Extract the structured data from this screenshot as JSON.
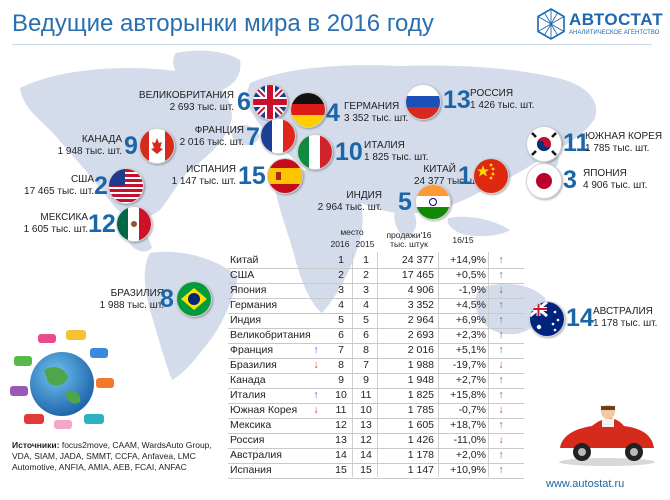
{
  "title": "Ведущие авторынки мира в 2016 году",
  "logo": {
    "name": "АВТОСТАТ",
    "subtitle": "АНАЛИТИЧЕСКОЕ АГЕНТСТВО"
  },
  "colors": {
    "accent": "#1b66a9",
    "up_arrow": "#2f6fd0",
    "down_arrow": "#d23b2b",
    "map": "#d4dceb"
  },
  "countries": [
    {
      "name": "ВЕЛИКОБРИТАНИЯ",
      "sales": "2 693 тыс. шт.",
      "rank": "6",
      "flag": "uk-flag-icon"
    },
    {
      "name": "ГЕРМАНИЯ",
      "sales": "3 352 тыс. шт.",
      "rank": "4",
      "flag": "germany-flag-icon"
    },
    {
      "name": "РОССИЯ",
      "sales": "1 426 тыс. шт.",
      "rank": "13",
      "flag": "russia-flag-icon"
    },
    {
      "name": "КАНАДА",
      "sales": "1 948 тыс. шт.",
      "rank": "9",
      "flag": "canada-flag-icon"
    },
    {
      "name": "ФРАНЦИЯ",
      "sales": "2 016 тыс. шт.",
      "rank": "7",
      "flag": "france-flag-icon"
    },
    {
      "name": "ИТАЛИЯ",
      "sales": "1 825 тыс. шт.",
      "rank": "10",
      "flag": "italy-flag-icon"
    },
    {
      "name": "ЮЖНАЯ КОРЕЯ",
      "sales": "1 785 тыс. шт.",
      "rank": "11",
      "flag": "south-korea-flag-icon"
    },
    {
      "name": "США",
      "sales": "17 465 тыс. шт.",
      "rank": "2",
      "flag": "usa-flag-icon"
    },
    {
      "name": "ИСПАНИЯ",
      "sales": "1 147 тыс. шт.",
      "rank": "15",
      "flag": "spain-flag-icon"
    },
    {
      "name": "КИТАЙ",
      "sales": "24 377 тыс. шт.",
      "rank": "1",
      "flag": "china-flag-icon"
    },
    {
      "name": "ЯПОНИЯ",
      "sales": "4 906 тыс. шт.",
      "rank": "3",
      "flag": "japan-flag-icon"
    },
    {
      "name": "МЕКСИКА",
      "sales": "1 605 тыс. шт.",
      "rank": "12",
      "flag": "mexico-flag-icon"
    },
    {
      "name": "ИНДИЯ",
      "sales": "2 964 тыс. шт.",
      "rank": "5",
      "flag": "india-flag-icon"
    },
    {
      "name": "БРАЗИЛИЯ",
      "sales": "1 988 тыс. шт.",
      "rank": "8",
      "flag": "brazil-flag-icon"
    },
    {
      "name": "АВСТРАЛИЯ",
      "sales": "1 178 тыс. шт.",
      "rank": "14",
      "flag": "australia-flag-icon"
    }
  ],
  "table": {
    "header_place": "место",
    "header_2016": "2016",
    "header_2015": "2015",
    "header_sales_1": "продажи'16",
    "header_sales_2": "тыс. штук",
    "header_change": "16/15"
  },
  "chart_data": {
    "type": "table",
    "title": "Ведущие авторынки мира в 2016 году",
    "columns": [
      "",
      "место 2016",
      "место 2015",
      "продажи'16 тыс. штук",
      "16/15"
    ],
    "rows": [
      {
        "country": "Китай",
        "move": "",
        "rank2016": "1",
        "rank2015": "1",
        "sales": "24 377",
        "change": "+14,9%",
        "trend": "up"
      },
      {
        "country": "США",
        "move": "",
        "rank2016": "2",
        "rank2015": "2",
        "sales": "17 465",
        "change": "+0,5%",
        "trend": "up"
      },
      {
        "country": "Япония",
        "move": "",
        "rank2016": "3",
        "rank2015": "3",
        "sales": "4 906",
        "change": "-1,9%",
        "trend": "down"
      },
      {
        "country": "Германия",
        "move": "",
        "rank2016": "4",
        "rank2015": "4",
        "sales": "3 352",
        "change": "+4,5%",
        "trend": "up"
      },
      {
        "country": "Индия",
        "move": "",
        "rank2016": "5",
        "rank2015": "5",
        "sales": "2 964",
        "change": "+6,9%",
        "trend": "up"
      },
      {
        "country": "Великобритания",
        "move": "",
        "rank2016": "6",
        "rank2015": "6",
        "sales": "2 693",
        "change": "+2,3%",
        "trend": "up"
      },
      {
        "country": "Франция",
        "move": "up",
        "rank2016": "7",
        "rank2015": "8",
        "sales": "2 016",
        "change": "+5,1%",
        "trend": "up"
      },
      {
        "country": "Бразилия",
        "move": "down",
        "rank2016": "8",
        "rank2015": "7",
        "sales": "1 988",
        "change": "-19,7%",
        "trend": "down"
      },
      {
        "country": "Канада",
        "move": "",
        "rank2016": "9",
        "rank2015": "9",
        "sales": "1 948",
        "change": "+2,7%",
        "trend": "up"
      },
      {
        "country": "Италия",
        "move": "up",
        "rank2016": "10",
        "rank2015": "11",
        "sales": "1 825",
        "change": "+15,8%",
        "trend": "up"
      },
      {
        "country": "Южная Корея",
        "move": "down",
        "rank2016": "11",
        "rank2015": "10",
        "sales": "1 785",
        "change": "-0,7%",
        "trend": "down"
      },
      {
        "country": "Мексика",
        "move": "",
        "rank2016": "12",
        "rank2015": "13",
        "sales": "1 605",
        "change": "+18,7%",
        "trend": "up"
      },
      {
        "country": "Россия",
        "move": "",
        "rank2016": "13",
        "rank2015": "12",
        "sales": "1 426",
        "change": "-11,0%",
        "trend": "down"
      },
      {
        "country": "Австралия",
        "move": "",
        "rank2016": "14",
        "rank2015": "14",
        "sales": "1 178",
        "change": "+2,0%",
        "trend": "up"
      },
      {
        "country": "Испания",
        "move": "",
        "rank2016": "15",
        "rank2015": "15",
        "sales": "1 147",
        "change": "+10,9%",
        "trend": "up"
      }
    ]
  },
  "sources": {
    "label": "Источники:",
    "text": " focus2move, CAAM, WardsAuto Group, VDA, SIAM, JADA, SMMT, CCFA, Anfavea, LMC Automotive, ANFIA, AMIA, AEB, FCAI, ANFAC"
  },
  "website": "www.autostat.ru"
}
